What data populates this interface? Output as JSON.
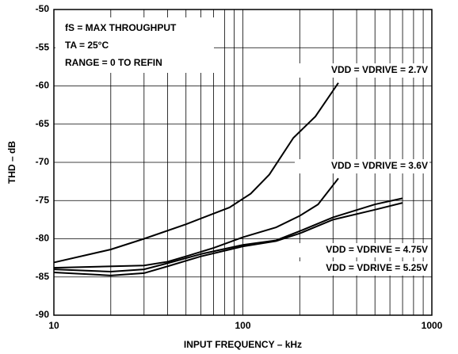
{
  "chart_data": {
    "type": "line",
    "xlabel": "INPUT FREQUENCY – kHz",
    "ylabel": "THD – dB",
    "annotations": [
      "fS = MAX THROUGHPUT",
      "TA = 25°C",
      "RANGE = 0 TO REFIN"
    ],
    "xscale": "log",
    "xlim": [
      10,
      1000
    ],
    "xticks": [
      10,
      100,
      1000
    ],
    "ylim": [
      -90,
      -50
    ],
    "yticks": [
      -90,
      -85,
      -80,
      -75,
      -70,
      -65,
      -60,
      -55,
      -50
    ],
    "grid": true,
    "minor_grid": true,
    "series": [
      {
        "name": "VDD = VDRIVE = 2.7V",
        "color": "#000000",
        "x": [
          10,
          20,
          30,
          50,
          85,
          110,
          138,
          185,
          242,
          320
        ],
        "values": [
          -83.1,
          -81.4,
          -80.0,
          -78.1,
          -75.9,
          -74.1,
          -71.6,
          -66.8,
          -64.0,
          -59.6
        ]
      },
      {
        "name": "VDD = VDRIVE = 3.6V",
        "color": "#000000",
        "x": [
          10,
          30,
          40,
          50,
          70,
          100,
          150,
          200,
          250,
          320
        ],
        "values": [
          -83.8,
          -83.5,
          -83.0,
          -82.3,
          -81.2,
          -79.8,
          -78.5,
          -77.0,
          -75.5,
          -72.1
        ]
      },
      {
        "name": "VDD = VDRIVE = 4.75V",
        "color": "#000000",
        "x": [
          10,
          20,
          30,
          40,
          60,
          100,
          150,
          200,
          300,
          500,
          700
        ],
        "values": [
          -84.0,
          -84.3,
          -84.0,
          -83.2,
          -82.0,
          -80.8,
          -80.2,
          -79.0,
          -77.2,
          -75.5,
          -74.7
        ]
      },
      {
        "name": "VDD = VDRIVE = 5.25V",
        "color": "#000000",
        "x": [
          10,
          20,
          30,
          40,
          60,
          100,
          150,
          200,
          300,
          500,
          700
        ],
        "values": [
          -84.4,
          -84.8,
          -84.5,
          -83.6,
          -82.3,
          -81.0,
          -80.3,
          -79.3,
          -77.5,
          -76.2,
          -75.3
        ]
      }
    ]
  }
}
